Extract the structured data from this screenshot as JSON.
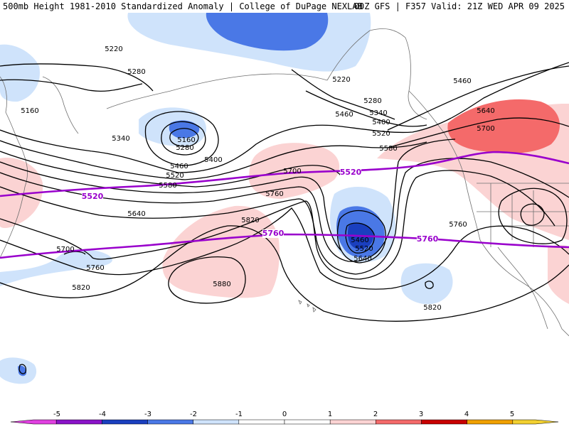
{
  "header": {
    "left": "500mb Height 1981-2010 Standardized Anomaly | College of DuPage NEXLAB",
    "right": "00Z GFS | F357 Valid: 21Z WED APR 09 2025"
  },
  "colors": {
    "neg5": "#e040e0",
    "neg4": "#8a14c8",
    "neg3": "#1a3fbf",
    "neg2": "#4a78e6",
    "neg1": "#cfe3fb",
    "zero": "#ffffff",
    "pos1": "#fbd3d3",
    "pos2": "#f46a6a",
    "pos3": "#c80000",
    "pos4": "#f0a000",
    "pos5": "#f2d030",
    "purple_contour": "#9900cc",
    "coast": "#707070"
  },
  "contour_labels": [
    "5220",
    "5280",
    "5160",
    "5340",
    "5160",
    "5280",
    "5400",
    "5460",
    "5520",
    "5580",
    "5640",
    "5700",
    "5760",
    "5820",
    "5880",
    "5760",
    "5820",
    "5220",
    "5280",
    "5340",
    "5400",
    "5460",
    "5520",
    "5580",
    "5700",
    "5460",
    "5520",
    "5640",
    "5760",
    "5820",
    "5460",
    "5640",
    "5700"
  ],
  "purple_labels": [
    "5520",
    "5520",
    "5760",
    "5760"
  ],
  "scale": {
    "ticks": [
      "-5",
      "-4",
      "-3",
      "-2",
      "-1",
      "0",
      "1",
      "2",
      "3",
      "4",
      "5"
    ]
  }
}
